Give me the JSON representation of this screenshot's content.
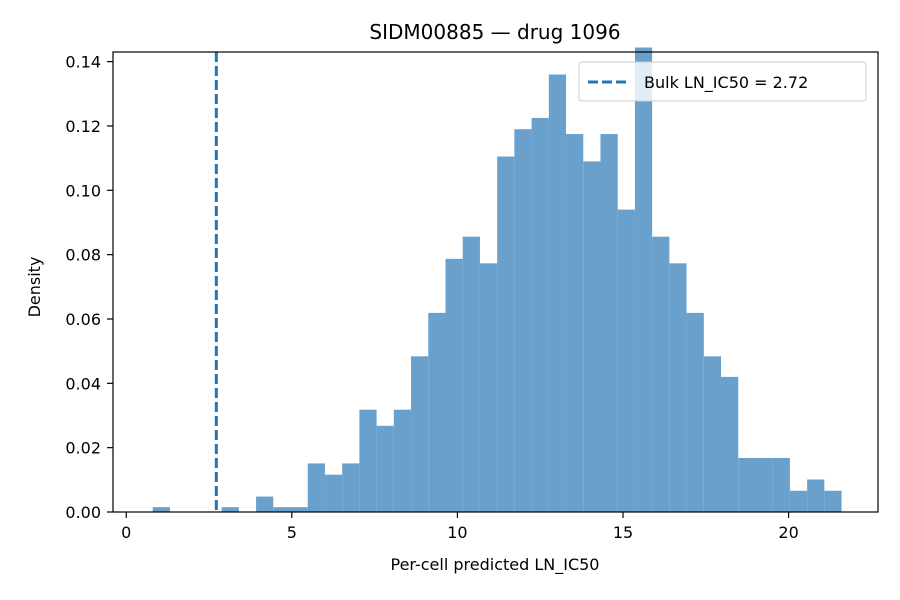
{
  "chart_data": {
    "type": "bar",
    "title": "SIDM00885 — drug 1096",
    "xlabel": "Per-cell predicted LN_IC50",
    "ylabel": "Density",
    "xlim": [
      -0.4,
      22.7
    ],
    "ylim": [
      0,
      0.143
    ],
    "x_ticks": [
      0,
      5,
      10,
      15,
      20
    ],
    "y_ticks": [
      0.0,
      0.02,
      0.04,
      0.06,
      0.08,
      0.1,
      0.12,
      0.14
    ],
    "bin_edges": [
      0.8,
      1.32,
      1.84,
      2.36,
      2.88,
      3.4,
      3.92,
      4.44,
      4.96,
      5.48,
      6.0,
      6.52,
      7.04,
      7.56,
      8.08,
      8.6,
      9.12,
      9.64,
      10.16,
      10.68,
      11.2,
      11.72,
      12.24,
      12.76,
      13.28,
      13.8,
      14.32,
      14.84,
      15.36,
      15.88,
      16.4,
      16.92,
      17.44,
      17.96,
      18.48,
      19.0,
      19.52,
      20.04,
      20.56,
      21.08,
      21.6
    ],
    "densities": [
      0.0015,
      0.0,
      0.0,
      0.0,
      0.0015,
      0.0,
      0.0048,
      0.0015,
      0.0015,
      0.0151,
      0.0116,
      0.0151,
      0.0318,
      0.0268,
      0.0318,
      0.0484,
      0.0619,
      0.0787,
      0.0856,
      0.0773,
      0.1105,
      0.119,
      0.1225,
      0.136,
      0.1175,
      0.109,
      0.1175,
      0.094,
      0.1444,
      0.0856,
      0.0773,
      0.0619,
      0.0484,
      0.042,
      0.0168,
      0.0168,
      0.0168,
      0.0066,
      0.0101,
      0.0066
    ],
    "bar_color": "#6aa0cc",
    "vline": {
      "x": 2.72,
      "style": "dashed",
      "color": "#1f77b4",
      "label": "Bulk LN_IC50 = 2.72"
    },
    "legend_position": "upper-right",
    "grid": false
  }
}
